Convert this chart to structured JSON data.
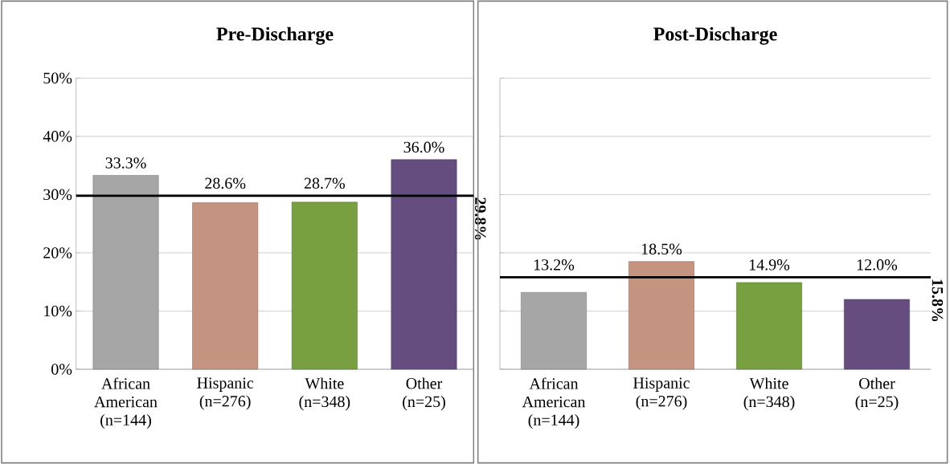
{
  "chart_data": [
    {
      "type": "bar",
      "title": "Pre-Discharge",
      "categories": [
        "African American (n=144)",
        "Hispanic (n=276)",
        "White (n=348)",
        "Other (n=25)"
      ],
      "values": [
        33.3,
        28.6,
        28.7,
        36.0
      ],
      "colors": [
        "#a6a6a6",
        "#c49480",
        "#78a040",
        "#654d80"
      ],
      "value_labels": [
        "33.3%",
        "28.6%",
        "28.7%",
        "36.0%"
      ],
      "ylim": [
        0,
        50
      ],
      "yticks": [
        {
          "value": 0,
          "label": "0%"
        },
        {
          "value": 10,
          "label": "10%"
        },
        {
          "value": 20,
          "label": "20%"
        },
        {
          "value": 30,
          "label": "30%"
        },
        {
          "value": 40,
          "label": "40%"
        },
        {
          "value": 50,
          "label": "50%"
        }
      ],
      "grid": "y",
      "ref_lines": [
        {
          "axis": "y",
          "value": 29.8,
          "label": "29.8%",
          "color": "#000000"
        }
      ]
    },
    {
      "type": "bar",
      "title": "Post-Discharge",
      "categories": [
        "African American (n=144)",
        "Hispanic (n=276)",
        "White (n=348)",
        "Other (n=25)"
      ],
      "values": [
        13.2,
        18.5,
        14.9,
        12.0
      ],
      "colors": [
        "#a6a6a6",
        "#c49480",
        "#78a040",
        "#654d80"
      ],
      "value_labels": [
        "13.2%",
        "18.5%",
        "14.9%",
        "12.0%"
      ],
      "ylim": [
        0,
        50
      ],
      "yticks": [
        0,
        10,
        20,
        30,
        40,
        50
      ],
      "grid": "y",
      "tick_labels": "x",
      "ref_lines": [
        {
          "axis": "y",
          "value": 15.8,
          "label": "15.8%",
          "color": "#000000"
        }
      ]
    }
  ]
}
